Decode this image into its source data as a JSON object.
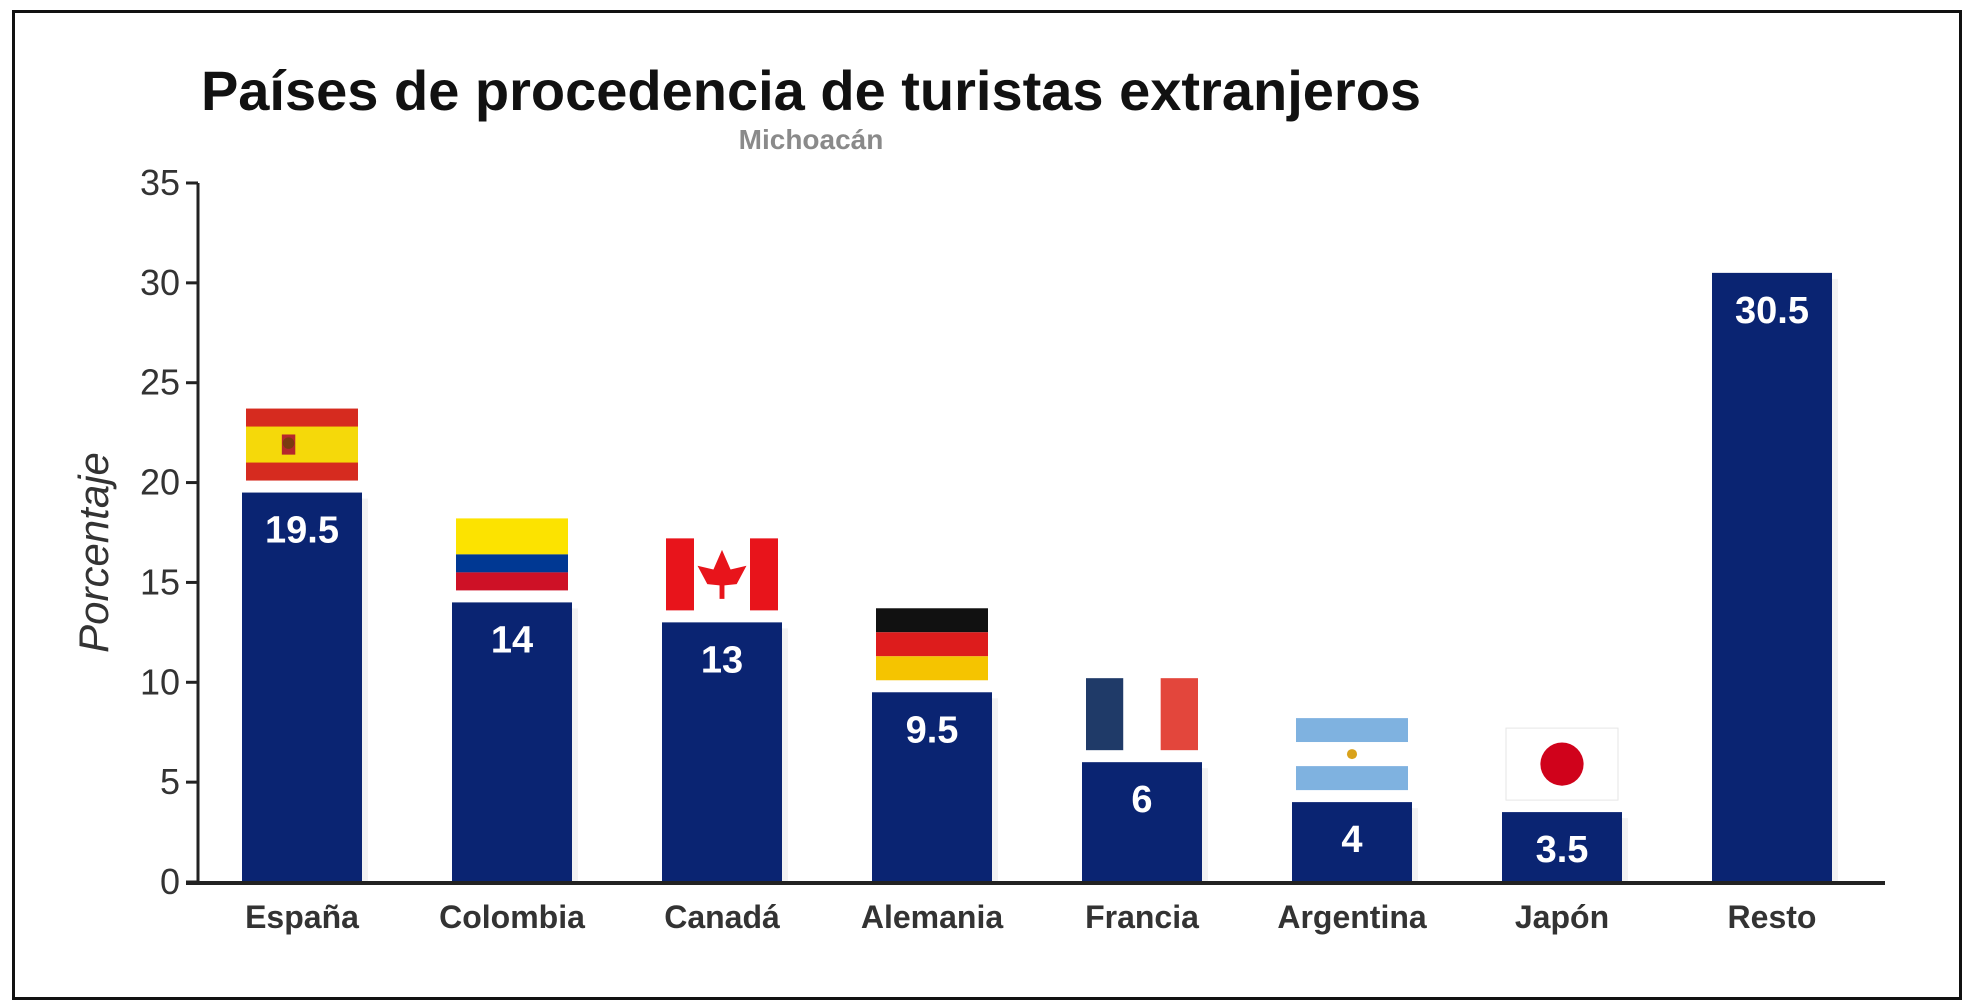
{
  "chart_data": {
    "type": "bar",
    "title": "Países de procedencia de turistas extranjeros",
    "subtitle": "Michoacán",
    "ylabel": "Porcentaje",
    "xlabel": "",
    "ylim": [
      0,
      35
    ],
    "yticks": [
      0,
      5,
      10,
      15,
      20,
      25,
      30,
      35
    ],
    "categories": [
      "España",
      "Colombia",
      "Canadá",
      "Alemania",
      "Francia",
      "Argentina",
      "Japón",
      "Resto"
    ],
    "values": [
      19.5,
      14,
      13,
      9.5,
      6,
      4,
      3.5,
      30.5
    ],
    "value_labels": [
      "19.5",
      "14",
      "13",
      "9.5",
      "6",
      "4",
      "3.5",
      "30.5"
    ],
    "flags": [
      "spain-flag-icon",
      "colombia-flag-icon",
      "canada-flag-icon",
      "germany-flag-icon",
      "france-flag-icon",
      "argentina-flag-icon",
      "japan-flag-icon",
      ""
    ],
    "bar_color": "#0a2472",
    "grid": false,
    "legend": "none"
  }
}
